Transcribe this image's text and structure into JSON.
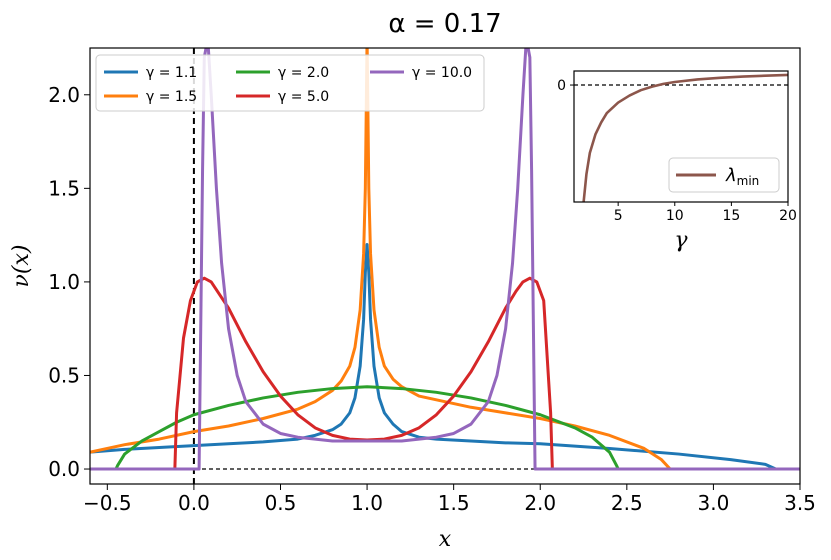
{
  "chart_data": [
    {
      "type": "line",
      "title": "α = 0.17",
      "xlabel": "x",
      "ylabel": "ν(x)",
      "xlim": [
        -0.6,
        3.5
      ],
      "ylim": [
        -0.08,
        2.25
      ],
      "xticks": [
        -0.5,
        0.0,
        0.5,
        1.0,
        1.5,
        2.0,
        2.5,
        3.0,
        3.5
      ],
      "xtick_labels": [
        "−0.5",
        "0.0",
        "0.5",
        "1.0",
        "1.5",
        "2.0",
        "2.5",
        "3.0",
        "3.5"
      ],
      "yticks": [
        0.0,
        0.5,
        1.0,
        1.5,
        2.0
      ],
      "ytick_labels": [
        "0.0",
        "0.5",
        "1.0",
        "1.5",
        "2.0"
      ],
      "reference_lines": [
        {
          "orientation": "vertical",
          "value": 0.0,
          "style": "dashed"
        },
        {
          "orientation": "horizontal",
          "value": 0.0,
          "style": "dashed"
        }
      ],
      "legend_position": "top-left",
      "series": [
        {
          "name": "γ = 1.1",
          "color": "#1f77b4",
          "x": [
            -0.6,
            -0.4,
            -0.2,
            0.0,
            0.2,
            0.4,
            0.6,
            0.7,
            0.8,
            0.85,
            0.9,
            0.93,
            0.96,
            0.98,
            0.99,
            1.0,
            1.01,
            1.02,
            1.04,
            1.07,
            1.1,
            1.15,
            1.2,
            1.3,
            1.4,
            1.6,
            1.8,
            2.0,
            2.4,
            2.8,
            3.1,
            3.3,
            3.36,
            3.5
          ],
          "y": [
            0.09,
            0.105,
            0.115,
            0.125,
            0.135,
            0.145,
            0.16,
            0.18,
            0.21,
            0.24,
            0.3,
            0.38,
            0.55,
            0.8,
            1.05,
            1.2,
            1.05,
            0.8,
            0.55,
            0.38,
            0.3,
            0.24,
            0.2,
            0.17,
            0.16,
            0.15,
            0.14,
            0.135,
            0.11,
            0.08,
            0.05,
            0.025,
            0.0,
            0.0
          ]
        },
        {
          "name": "γ = 1.5",
          "color": "#ff7f0e",
          "x": [
            -0.6,
            -0.4,
            -0.2,
            0.0,
            0.2,
            0.4,
            0.6,
            0.7,
            0.8,
            0.85,
            0.9,
            0.93,
            0.96,
            0.98,
            0.99,
            0.995,
            1.0,
            1.005,
            1.01,
            1.02,
            1.04,
            1.07,
            1.1,
            1.15,
            1.2,
            1.3,
            1.4,
            1.6,
            1.8,
            2.0,
            2.2,
            2.4,
            2.6,
            2.7,
            2.75,
            3.5
          ],
          "y": [
            0.09,
            0.13,
            0.16,
            0.2,
            0.23,
            0.27,
            0.32,
            0.36,
            0.42,
            0.47,
            0.55,
            0.65,
            0.85,
            1.15,
            1.5,
            1.9,
            2.3,
            1.9,
            1.5,
            1.15,
            0.85,
            0.65,
            0.55,
            0.48,
            0.44,
            0.39,
            0.37,
            0.33,
            0.3,
            0.27,
            0.23,
            0.18,
            0.11,
            0.05,
            0.0,
            0.0
          ]
        },
        {
          "name": "γ = 2.0",
          "color": "#2ca02c",
          "x": [
            -0.6,
            -0.45,
            -0.44,
            -0.4,
            -0.3,
            -0.2,
            -0.1,
            0.0,
            0.2,
            0.4,
            0.6,
            0.8,
            1.0,
            1.2,
            1.4,
            1.6,
            1.8,
            2.0,
            2.2,
            2.3,
            2.4,
            2.44,
            2.45,
            3.5
          ],
          "y": [
            0.0,
            0.0,
            0.02,
            0.08,
            0.15,
            0.2,
            0.25,
            0.29,
            0.34,
            0.38,
            0.41,
            0.43,
            0.44,
            0.43,
            0.41,
            0.38,
            0.34,
            0.29,
            0.22,
            0.17,
            0.09,
            0.02,
            0.0,
            0.0
          ]
        },
        {
          "name": "γ = 5.0",
          "color": "#d62728",
          "x": [
            -0.6,
            -0.11,
            -0.1,
            -0.06,
            -0.02,
            0.02,
            0.06,
            0.1,
            0.2,
            0.3,
            0.4,
            0.5,
            0.6,
            0.7,
            0.8,
            0.9,
            1.0,
            1.1,
            1.2,
            1.3,
            1.4,
            1.5,
            1.6,
            1.7,
            1.8,
            1.86,
            1.9,
            1.94,
            1.98,
            2.02,
            2.06,
            2.07,
            3.5
          ],
          "y": [
            0.0,
            0.0,
            0.3,
            0.7,
            0.9,
            1.0,
            1.02,
            1.0,
            0.86,
            0.68,
            0.52,
            0.39,
            0.29,
            0.22,
            0.18,
            0.16,
            0.155,
            0.16,
            0.18,
            0.22,
            0.29,
            0.39,
            0.52,
            0.68,
            0.86,
            0.95,
            1.0,
            1.02,
            1.0,
            0.9,
            0.3,
            0.0,
            0.0
          ]
        },
        {
          "name": "γ = 10.0",
          "color": "#9467bd",
          "x": [
            -0.6,
            0.03,
            0.04,
            0.05,
            0.06,
            0.08,
            0.1,
            0.13,
            0.16,
            0.2,
            0.25,
            0.3,
            0.4,
            0.5,
            0.6,
            0.7,
            0.8,
            1.0,
            1.2,
            1.3,
            1.4,
            1.5,
            1.6,
            1.7,
            1.75,
            1.8,
            1.84,
            1.87,
            1.9,
            1.92,
            1.94,
            1.95,
            1.96,
            1.97,
            3.5
          ],
          "y": [
            0.0,
            0.0,
            0.8,
            1.6,
            2.2,
            2.3,
            2.0,
            1.5,
            1.1,
            0.75,
            0.5,
            0.36,
            0.24,
            0.19,
            0.17,
            0.16,
            0.15,
            0.15,
            0.15,
            0.16,
            0.17,
            0.19,
            0.24,
            0.36,
            0.5,
            0.75,
            1.1,
            1.5,
            2.0,
            2.3,
            2.2,
            1.6,
            0.8,
            0.0,
            0.0
          ]
        }
      ]
    },
    {
      "type": "line",
      "title": "",
      "xlabel": "γ",
      "ylabel": "",
      "xlim": [
        1.1,
        20
      ],
      "xticks": [
        5,
        10,
        15,
        20
      ],
      "xtick_labels": [
        "5",
        "10",
        "15",
        "20"
      ],
      "yticks": [
        0
      ],
      "ytick_labels": [
        "0"
      ],
      "ylim": [
        -0.5,
        0.06
      ],
      "reference_lines": [
        {
          "orientation": "horizontal",
          "value": 0.0,
          "style": "dashed"
        }
      ],
      "legend_position": "bottom-right",
      "series": [
        {
          "name": "λmin",
          "legend_base": "λ",
          "legend_sub": "min",
          "color": "#8c564b",
          "x": [
            1.95,
            2.2,
            2.5,
            3,
            3.5,
            4,
            5,
            6,
            7,
            8,
            9,
            10,
            12,
            14,
            16,
            18,
            20
          ],
          "y": [
            -0.5,
            -0.38,
            -0.29,
            -0.21,
            -0.16,
            -0.12,
            -0.075,
            -0.045,
            -0.022,
            -0.007,
            0.005,
            0.013,
            0.024,
            0.031,
            0.036,
            0.04,
            0.043
          ]
        }
      ]
    }
  ]
}
